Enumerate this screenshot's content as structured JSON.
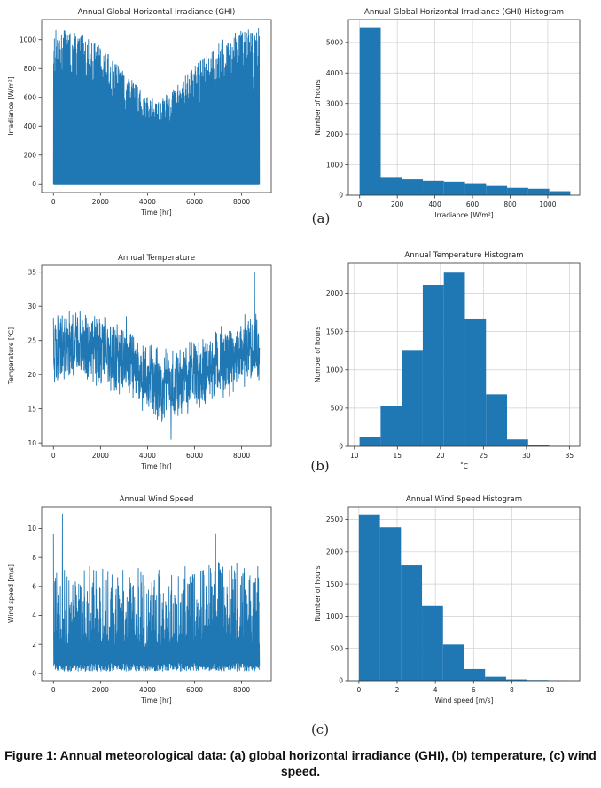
{
  "figure_caption": "Figure 1: Annual meteorological data: (a) global horizontal irradiance (GHI), (b) temperature, (c) wind speed.",
  "panel_labels": [
    "(a)",
    "(b)",
    "(c)"
  ],
  "colors": {
    "series": "#1f77b4",
    "grid": "#cfcfcf"
  },
  "chart_data": [
    {
      "id": "ghi-timeseries",
      "type": "line",
      "title": "Annual Global Horizontal Irradiance (GHI)",
      "xlabel": "Time [hr]",
      "ylabel": "Irradiance [W/m²]",
      "xlim": [
        -500,
        9260
      ],
      "ylim": [
        -60,
        1140
      ],
      "xticks": [
        0,
        2000,
        4000,
        6000,
        8000
      ],
      "yticks": [
        0,
        200,
        400,
        600,
        800,
        1000
      ],
      "grid": false,
      "envelope": {
        "x": [
          0,
          1000,
          2000,
          3000,
          4000,
          4500,
          5000,
          6000,
          7000,
          8000,
          8760
        ],
        "y": [
          1080,
          1050,
          960,
          780,
          600,
          580,
          640,
          820,
          980,
          1070,
          1090
        ]
      },
      "baseline": 0
    },
    {
      "id": "ghi-histogram",
      "type": "bar",
      "title": "Annual Global Horizontal Irradiance (GHI) Histogram",
      "xlabel": "Irradiance [W/m²]",
      "ylabel": "Number of hours",
      "xlim": [
        -60,
        1170
      ],
      "ylim": [
        0,
        5750
      ],
      "xticks": [
        0,
        200,
        400,
        600,
        800,
        1000
      ],
      "yticks": [
        0,
        1000,
        2000,
        3000,
        4000,
        5000
      ],
      "grid": true,
      "bin_edges": [
        0,
        112,
        224,
        336,
        448,
        560,
        672,
        784,
        896,
        1008,
        1120
      ],
      "values": [
        5500,
        570,
        520,
        470,
        440,
        390,
        300,
        240,
        210,
        130
      ]
    },
    {
      "id": "temp-timeseries",
      "type": "line",
      "title": "Annual Temperature",
      "xlabel": "Time [hr]",
      "ylabel": "Temperature [℃]",
      "xlim": [
        -500,
        9260
      ],
      "ylim": [
        9.5,
        36
      ],
      "xticks": [
        0,
        2000,
        4000,
        6000,
        8000
      ],
      "yticks": [
        10,
        15,
        20,
        25,
        30,
        35
      ],
      "grid": false,
      "mean_curve": {
        "x": [
          0,
          1000,
          2000,
          3000,
          4000,
          4500,
          5000,
          6000,
          7000,
          8000,
          8760
        ],
        "y": [
          23.5,
          24,
          23.5,
          22,
          19.5,
          18,
          18.5,
          20,
          21.5,
          23,
          24
        ]
      },
      "spikes": [
        [
          8550,
          35
        ],
        [
          5000,
          10.5
        ],
        [
          3100,
          28.5
        ]
      ]
    },
    {
      "id": "temp-histogram",
      "type": "bar",
      "title": "Annual Temperature Histogram",
      "xlabel": "˚C",
      "ylabel": "Number of hours",
      "xlim": [
        9.3,
        36.2
      ],
      "ylim": [
        0,
        2400
      ],
      "xticks": [
        10,
        15,
        20,
        25,
        30,
        35
      ],
      "yticks": [
        0,
        500,
        1000,
        1500,
        2000
      ],
      "grid": true,
      "bin_edges": [
        10.6,
        13.05,
        15.5,
        17.95,
        20.4,
        22.85,
        25.3,
        27.75,
        30.2,
        32.65,
        35.1
      ],
      "values": [
        120,
        530,
        1260,
        2110,
        2270,
        1670,
        680,
        90,
        15,
        5
      ]
    },
    {
      "id": "wind-timeseries",
      "type": "line",
      "title": "Annual Wind Speed",
      "xlabel": "Time [hr]",
      "ylabel": "Wind speed [m/s]",
      "xlim": [
        -500,
        9260
      ],
      "ylim": [
        -0.5,
        11.5
      ],
      "xticks": [
        0,
        2000,
        4000,
        6000,
        8000
      ],
      "yticks": [
        0,
        2,
        4,
        6,
        8,
        10
      ],
      "grid": false,
      "mean_curve": {
        "x": [
          0,
          2000,
          4000,
          6000,
          8000,
          8760
        ],
        "y": [
          2.0,
          2.0,
          1.8,
          2.2,
          2.2,
          2.0
        ]
      },
      "spikes": [
        [
          380,
          11
        ],
        [
          0,
          9.6
        ],
        [
          6900,
          9.6
        ],
        [
          8800,
          8.6
        ]
      ]
    },
    {
      "id": "wind-histogram",
      "type": "bar",
      "title": "Annual Wind Speed Histogram",
      "xlabel": "Wind speed [m/s]",
      "ylabel": "Number of hours",
      "xlim": [
        -0.55,
        11.55
      ],
      "ylim": [
        0,
        2700
      ],
      "xticks": [
        0,
        2,
        4,
        6,
        8,
        10
      ],
      "yticks": [
        0,
        500,
        1000,
        1500,
        2000,
        2500
      ],
      "grid": true,
      "bin_edges": [
        0,
        1.1,
        2.2,
        3.3,
        4.4,
        5.5,
        6.6,
        7.7,
        8.8,
        9.9,
        11
      ],
      "values": [
        2580,
        2380,
        1790,
        1160,
        560,
        180,
        60,
        20,
        10,
        5
      ]
    }
  ]
}
